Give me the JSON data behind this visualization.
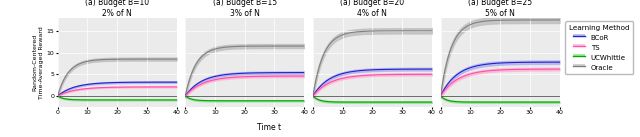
{
  "subplots": [
    {
      "title": "(a) Budget B=10",
      "subtitle": "2% of N",
      "oracle_final": 8.5,
      "bcor_final": 3.2,
      "ts_final": 2.1,
      "ucw_final": -0.9,
      "ylim": [
        -2.5,
        18
      ]
    },
    {
      "title": "(a) Budget B=15",
      "subtitle": "3% of N",
      "oracle_final": 11.5,
      "bcor_final": 5.4,
      "ts_final": 4.6,
      "ucw_final": -1.1,
      "ylim": [
        -2.5,
        18
      ]
    },
    {
      "title": "(a) Budget B=20",
      "subtitle": "4% of N",
      "oracle_final": 15.0,
      "bcor_final": 6.2,
      "ts_final": 5.0,
      "ucw_final": -1.4,
      "ylim": [
        -2.5,
        18
      ]
    },
    {
      "title": "(a) Budget B=25",
      "subtitle": "5% of N",
      "oracle_final": 17.5,
      "bcor_final": 7.8,
      "ts_final": 6.2,
      "ucw_final": -1.4,
      "ylim": [
        -2.5,
        18
      ]
    }
  ],
  "xlabel": "Time t",
  "ylabel": "Random-Centered\nTime-Averaged Reward",
  "colors": {
    "oracle": "#808080",
    "oracle_band": "#c0c0c0",
    "bcor_line": "#2222cc",
    "bcor_band": "#aaaaee",
    "ts_line": "#ff4daa",
    "ts_band": "#ffb0d0",
    "ucw_line": "#00aa00",
    "ucw_band": "#88dd88"
  },
  "legend_labels": [
    "BCoR",
    "TS",
    "UCWhittle",
    "Oracle"
  ],
  "xticks": [
    0,
    10,
    20,
    30,
    40
  ],
  "yticks": [
    0,
    5,
    10,
    15
  ],
  "T": 40,
  "background_color": "#ebebeb"
}
